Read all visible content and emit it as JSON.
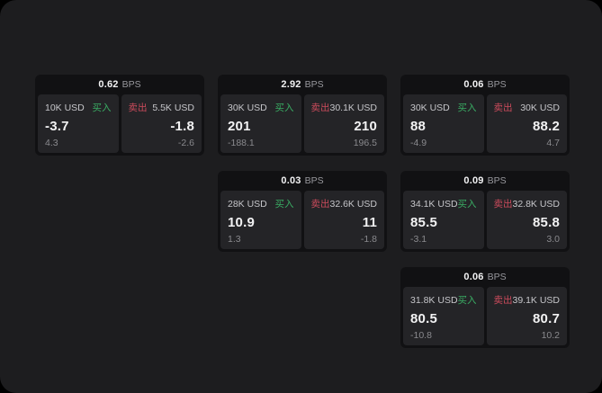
{
  "labels": {
    "buy": "买入",
    "sell": "卖出",
    "unit": "BPS"
  },
  "colors": {
    "buy_green": "#3aad64",
    "sell_red": "#cc4b5c",
    "screen_background": "#1d1d1f",
    "card_background": "#111113",
    "panel_background": "#242427"
  },
  "cards": [
    {
      "bps": "0.62",
      "buy": {
        "amount": "10K USD",
        "value": "-3.7",
        "sub": "4.3"
      },
      "sell": {
        "amount": "5.5K USD",
        "value": "-1.8",
        "sub": "-2.6"
      }
    },
    {
      "bps": "2.92",
      "buy": {
        "amount": "30K USD",
        "value": "201",
        "sub": "-188.1"
      },
      "sell": {
        "amount": "30.1K USD",
        "value": "210",
        "sub": "196.5"
      }
    },
    {
      "bps": "0.06",
      "buy": {
        "amount": "30K USD",
        "value": "88",
        "sub": "-4.9"
      },
      "sell": {
        "amount": "30K USD",
        "value": "88.2",
        "sub": "4.7"
      }
    },
    {
      "bps": "0.03",
      "buy": {
        "amount": "28K USD",
        "value": "10.9",
        "sub": "1.3"
      },
      "sell": {
        "amount": "32.6K USD",
        "value": "11",
        "sub": "-1.8"
      }
    },
    {
      "bps": "0.09",
      "buy": {
        "amount": "34.1K USD",
        "value": "85.5",
        "sub": "-3.1"
      },
      "sell": {
        "amount": "32.8K USD",
        "value": "85.8",
        "sub": "3.0"
      }
    },
    {
      "bps": "0.06",
      "buy": {
        "amount": "31.8K USD",
        "value": "80.5",
        "sub": "-10.8"
      },
      "sell": {
        "amount": "39.1K USD",
        "value": "80.7",
        "sub": "10.2"
      }
    }
  ]
}
